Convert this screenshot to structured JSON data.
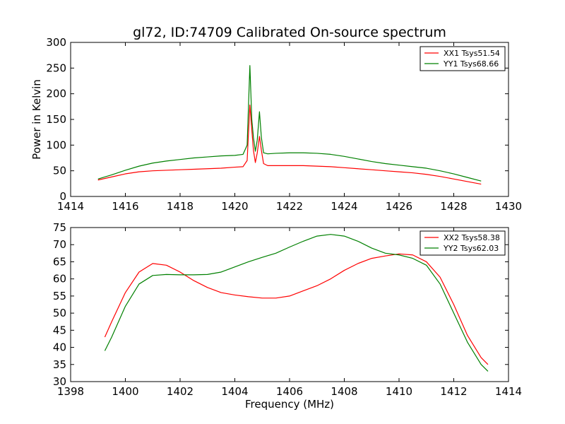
{
  "figure": {
    "title": "gl72, ID:74709 Calibrated On-source spectrum"
  },
  "chart_data": [
    {
      "type": "line",
      "title": "gl72, ID:74709 Calibrated On-source spectrum",
      "xlabel": "",
      "ylabel": "Power in Kelvin",
      "xlim": [
        1414,
        1430
      ],
      "ylim": [
        0,
        300
      ],
      "xticks": [
        "1414",
        "1416",
        "1418",
        "1420",
        "1422",
        "1424",
        "1426",
        "1428",
        "1430"
      ],
      "yticks": [
        "0",
        "50",
        "100",
        "150",
        "200",
        "250",
        "300"
      ],
      "grid": false,
      "legend": "top-right",
      "series": [
        {
          "name": "XX1 Tsys51.54",
          "color": "#ff0000",
          "x": [
            1415.0,
            1415.5,
            1416.0,
            1416.5,
            1417.0,
            1417.5,
            1418.0,
            1418.5,
            1419.0,
            1419.5,
            1420.0,
            1420.3,
            1420.45,
            1420.55,
            1420.62,
            1420.68,
            1420.75,
            1420.82,
            1420.9,
            1420.97,
            1421.05,
            1421.2,
            1421.5,
            1422.0,
            1422.5,
            1423.0,
            1423.5,
            1424.0,
            1424.5,
            1425.0,
            1425.5,
            1426.0,
            1426.5,
            1427.0,
            1427.5,
            1428.0,
            1428.5,
            1429.0
          ],
          "y": [
            32,
            38,
            44,
            48,
            50,
            51,
            52,
            53,
            54,
            55,
            57,
            58,
            70,
            178,
            130,
            90,
            66,
            85,
            117,
            90,
            64,
            60,
            60,
            60,
            60,
            59,
            58,
            56,
            54,
            52,
            50,
            48,
            46,
            43,
            39,
            34,
            29,
            24
          ]
        },
        {
          "name": "YY1 Tsys68.66",
          "color": "#008000",
          "x": [
            1415.0,
            1415.5,
            1416.0,
            1416.5,
            1417.0,
            1417.5,
            1418.0,
            1418.5,
            1419.0,
            1419.5,
            1420.0,
            1420.3,
            1420.45,
            1420.55,
            1420.62,
            1420.68,
            1420.75,
            1420.82,
            1420.9,
            1420.97,
            1421.05,
            1421.2,
            1421.5,
            1422.0,
            1422.5,
            1423.0,
            1423.5,
            1424.0,
            1424.5,
            1425.0,
            1425.5,
            1426.0,
            1426.5,
            1427.0,
            1427.5,
            1428.0,
            1428.5,
            1429.0
          ],
          "y": [
            34,
            42,
            51,
            59,
            65,
            69,
            72,
            75,
            77,
            79,
            80,
            82,
            100,
            255,
            150,
            115,
            88,
            110,
            165,
            115,
            85,
            83,
            84,
            85,
            85,
            84,
            82,
            78,
            73,
            68,
            64,
            61,
            58,
            55,
            50,
            44,
            37,
            30
          ]
        }
      ]
    },
    {
      "type": "line",
      "title": "",
      "xlabel": "Frequency (MHz)",
      "ylabel": "",
      "xlim": [
        1398,
        1414
      ],
      "ylim": [
        30,
        75
      ],
      "xticks": [
        "1398",
        "1400",
        "1402",
        "1404",
        "1406",
        "1408",
        "1410",
        "1412",
        "1414"
      ],
      "yticks": [
        "30",
        "35",
        "40",
        "45",
        "50",
        "55",
        "60",
        "65",
        "70",
        "75"
      ],
      "grid": false,
      "legend": "top-right",
      "series": [
        {
          "name": "XX2 Tsys58.38",
          "color": "#ff0000",
          "x": [
            1399.25,
            1399.5,
            1400.0,
            1400.5,
            1401.0,
            1401.5,
            1402.0,
            1402.5,
            1403.0,
            1403.5,
            1404.0,
            1404.5,
            1405.0,
            1405.5,
            1406.0,
            1406.5,
            1407.0,
            1407.5,
            1408.0,
            1408.5,
            1409.0,
            1409.5,
            1410.0,
            1410.5,
            1411.0,
            1411.5,
            1412.0,
            1412.5,
            1413.0,
            1413.25
          ],
          "y": [
            43,
            47.5,
            56,
            62,
            64.5,
            64,
            62,
            59.5,
            57.5,
            56,
            55.3,
            54.8,
            54.4,
            54.4,
            55,
            56.5,
            58,
            60,
            62.5,
            64.5,
            66,
            66.7,
            67.3,
            67,
            65,
            60.5,
            52.5,
            43.5,
            37,
            35
          ]
        },
        {
          "name": "YY2 Tsys62.03",
          "color": "#008000",
          "x": [
            1399.25,
            1399.5,
            1400.0,
            1400.5,
            1401.0,
            1401.5,
            1402.0,
            1402.5,
            1403.0,
            1403.5,
            1404.0,
            1404.5,
            1405.0,
            1405.5,
            1406.0,
            1406.5,
            1407.0,
            1407.5,
            1408.0,
            1408.5,
            1409.0,
            1409.5,
            1410.0,
            1410.5,
            1411.0,
            1411.5,
            1412.0,
            1412.5,
            1413.0,
            1413.25
          ],
          "y": [
            39,
            43,
            52,
            58.5,
            61,
            61.3,
            61.2,
            61.2,
            61.3,
            62,
            63.5,
            65,
            66.3,
            67.5,
            69.3,
            71,
            72.5,
            73,
            72.5,
            71,
            69,
            67.5,
            67,
            66,
            64,
            58.5,
            50,
            41.5,
            35,
            33
          ]
        }
      ]
    }
  ]
}
